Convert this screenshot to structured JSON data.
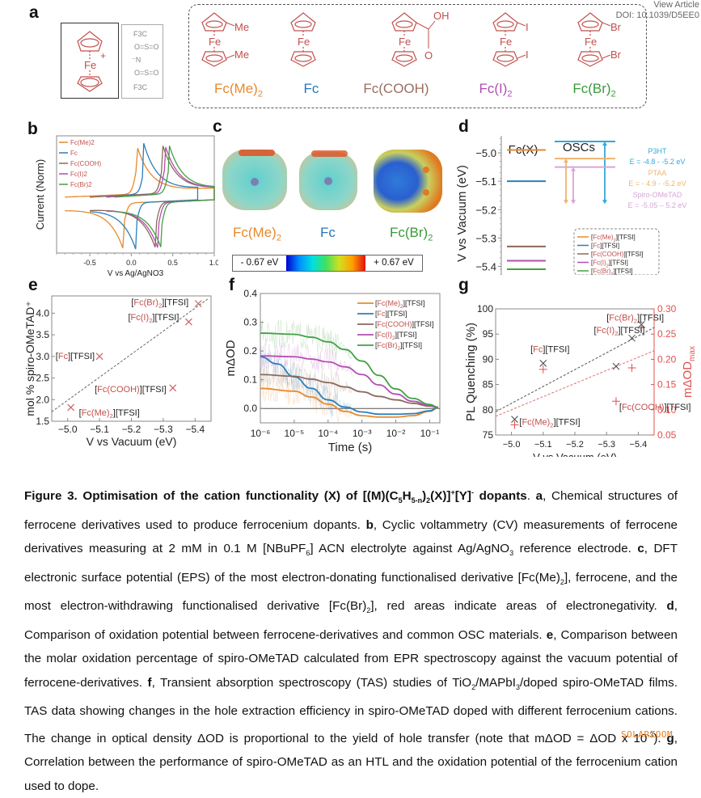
{
  "header": {
    "view_article": "View Article",
    "doi": "DOI: 10.1039/D5EE0"
  },
  "panel_a": {
    "label": "a",
    "cation_fe": "Fe",
    "cation_charge": "+",
    "tfsi_lines": [
      "F3C",
      "O=S=O",
      "⁻N",
      "O=S=O",
      "F3C"
    ],
    "molecules": [
      {
        "name": "Fc(Me)₂",
        "color": "#e8892b",
        "sub_top": "Me",
        "sub_bottom": "Me"
      },
      {
        "name": "Fc",
        "color": "#2878b8",
        "sub_top": "",
        "sub_bottom": ""
      },
      {
        "name": "Fc(COOH)",
        "color": "#9a6e60",
        "sub_top": "OH",
        "sub_bottom": "O"
      },
      {
        "name": "Fc(I)₂",
        "color": "#b050b0",
        "sub_top": "I",
        "sub_bottom": "I"
      },
      {
        "name": "Fc(Br)₂",
        "color": "#3a9a3a",
        "sub_top": "Br",
        "sub_bottom": "Br"
      }
    ],
    "fe_label": "Fe"
  },
  "colors": {
    "me2": "#e8892b",
    "fc": "#2b7fba",
    "cooh": "#8a6a5a",
    "i2": "#b24fb2",
    "br2": "#43a043",
    "struct": "#c0504d",
    "red_axis": "#e05050"
  },
  "chart_data": [
    {
      "id": "b",
      "type": "line",
      "title": "",
      "xlabel": "V vs Ag/AgNO3",
      "ylabel": "Current (Norm)",
      "xlim": [
        -0.9,
        1.0
      ],
      "ylim": [
        -1.1,
        1.1
      ],
      "xticks": [
        -0.5,
        0.0,
        0.5,
        1.0
      ],
      "xtick_labels": [
        "-0.5",
        "0.0",
        "0.5",
        "1.0"
      ],
      "legend": [
        "Fc(Me)2",
        "Fc",
        "Fc(COOH)",
        "Fc(I)2",
        "Fc(Br)2"
      ],
      "legend_position": "top-left",
      "series": [
        {
          "name": "Fc(Me)2",
          "start": -0.8,
          "end": 1.0,
          "E_ox": 0.06,
          "E_red": -0.09
        },
        {
          "name": "Fc",
          "start": -0.5,
          "end": 0.8,
          "E_ox": 0.15,
          "E_red": 0.06
        },
        {
          "name": "Fc(COOH)",
          "start": -0.5,
          "end": 1.0,
          "E_ox": 0.37,
          "E_red": 0.3
        },
        {
          "name": "Fc(I)2",
          "start": -0.3,
          "end": 1.0,
          "E_ox": 0.4,
          "E_red": 0.33
        },
        {
          "name": "Fc(Br)2",
          "start": -0.2,
          "end": 1.0,
          "E_ox": 0.45,
          "E_red": 0.37
        }
      ]
    },
    {
      "id": "d",
      "type": "bar",
      "title": "",
      "ylabel": "V vs Vacuum (eV)",
      "ylim": [
        -5.43,
        -4.94
      ],
      "yticks": [
        -5.0,
        -5.1,
        -5.2,
        -5.3,
        -5.4
      ],
      "ytick_labels": [
        "−5.0",
        "−5.1",
        "−5.2",
        "−5.3",
        "−5.4"
      ],
      "group_labels": [
        "Fc(X)",
        "OSCs"
      ],
      "fcx_levels": [
        {
          "name": "[Fc(Me)2][TFSI]",
          "value": -4.99
        },
        {
          "name": "[Fc][TFSI]",
          "value": -5.1
        },
        {
          "name": "[Fc(COOH)][TFSI]",
          "value": -5.33
        },
        {
          "name": "[Fc(I)2][TFSI]",
          "value": -5.38
        },
        {
          "name": "[Fc(Br)2][TFSI]",
          "value": -5.41
        }
      ],
      "osc_levels": [
        {
          "name": "P3HT",
          "top": -4.96,
          "bottom": -5.18,
          "range_text": "E = -4.8 - -5.2 eV",
          "color": "#33a8d8"
        },
        {
          "name": "PTAA",
          "top": -5.02,
          "bottom": -5.18,
          "range_text": "E = - 4.9 - -5.2 eV",
          "color": "#f3b36a"
        },
        {
          "name": "Spiro-OMeTAD",
          "top": -5.05,
          "bottom": -5.18,
          "range_text": "E = -5.05 – 5.2 eV",
          "color": "#d7a5d9"
        }
      ],
      "legend_entries": [
        {
          "pre": "[",
          "red": "Fc(Me)",
          "sub": "2",
          "post": "][TFSI]"
        },
        {
          "pre": "[",
          "red": "Fc",
          "sub": "",
          "post": "][TFSI]"
        },
        {
          "pre": "[",
          "red": "Fc(COOH)",
          "sub": "",
          "post": "][TFSI]"
        },
        {
          "pre": "[",
          "red": "Fc(I)",
          "sub": "2",
          "post": "][TFSI]"
        },
        {
          "pre": "[",
          "red": "Fc(Br)",
          "sub": "2",
          "post": "][TFSI]"
        }
      ],
      "legend_position": "bottom-right"
    },
    {
      "id": "e",
      "type": "scatter",
      "title": "",
      "xlabel": "V vs Vacuum (eV)",
      "ylabel": "mol % spiro-OMeTAD⁺",
      "xlim": [
        -4.95,
        -5.45
      ],
      "ylim": [
        1.5,
        4.4
      ],
      "xticks": [
        -5.0,
        -5.1,
        -5.2,
        -5.3,
        -5.4
      ],
      "xtick_labels": [
        "−5.0",
        "−5.1",
        "−5.2",
        "−5.3",
        "−5.4"
      ],
      "yticks": [
        1.5,
        2.0,
        2.5,
        3.0,
        3.5,
        4.0
      ],
      "ytick_labels": [
        "1.5",
        "2.0",
        "2.5",
        "3.0",
        "3.5",
        "4.0"
      ],
      "points": [
        {
          "name": "[Fc(Me)2][TFSI]",
          "x": -5.01,
          "y": 1.82,
          "label_red": "Fc(Me)",
          "sub": "2"
        },
        {
          "name": "[Fc][TFSI]",
          "x": -5.1,
          "y": 3.0,
          "label_red": "Fc",
          "sub": ""
        },
        {
          "name": "[Fc(COOH)][TFSI]",
          "x": -5.33,
          "y": 2.27,
          "label_red": "Fc(COOH)",
          "sub": ""
        },
        {
          "name": "[Fc(I)2][TFSI]",
          "x": -5.38,
          "y": 3.8,
          "label_red": "Fc(I)",
          "sub": "2"
        },
        {
          "name": "[Fc(Br)2][TFSI]",
          "x": -5.41,
          "y": 4.22,
          "label_red": "Fc(Br)",
          "sub": "2"
        }
      ],
      "fit_line": {
        "x": [
          -4.95,
          -5.44
        ],
        "y": [
          1.72,
          4.33
        ]
      }
    },
    {
      "id": "f",
      "type": "line",
      "title": "",
      "xlabel": "Time (s)",
      "ylabel": "mΔOD",
      "xscale": "log",
      "xlim_log10": [
        -6,
        -0.7
      ],
      "ylim": [
        -0.05,
        0.4
      ],
      "xticks_log10": [
        -6,
        -5,
        -4,
        -3,
        -2,
        -1
      ],
      "xtick_labels": [
        "10⁻⁶",
        "10⁻⁵",
        "10⁻⁴",
        "10⁻³",
        "10⁻²",
        "10⁻¹"
      ],
      "yticks": [
        0.0,
        0.1,
        0.2,
        0.3,
        0.4
      ],
      "ytick_labels": [
        "0.0",
        "0.1",
        "0.2",
        "0.3",
        "0.4"
      ],
      "legend_position": "top-right",
      "series": [
        {
          "name": "[Fc(Me)2][TFSI]",
          "label_red": "Fc(Me)",
          "sub": "2",
          "points_log10x": [
            [
              -6,
              0.07
            ],
            [
              -5,
              0.06
            ],
            [
              -4.5,
              0.04
            ],
            [
              -4,
              0.015
            ],
            [
              -3.5,
              -0.01
            ],
            [
              -3,
              -0.025
            ],
            [
              -2.5,
              -0.03
            ],
            [
              -2,
              -0.03
            ],
            [
              -1.5,
              -0.025
            ],
            [
              -1,
              -0.01
            ],
            [
              -0.75,
              0.002
            ]
          ]
        },
        {
          "name": "[Fc][TFSI]",
          "label_red": "Fc",
          "sub": "",
          "points_log10x": [
            [
              -6,
              0.18
            ],
            [
              -5.5,
              0.155
            ],
            [
              -5,
              0.11
            ],
            [
              -4.5,
              0.07
            ],
            [
              -4,
              0.03
            ],
            [
              -3.5,
              0.005
            ],
            [
              -3,
              -0.012
            ],
            [
              -2.5,
              -0.02
            ],
            [
              -2,
              -0.02
            ],
            [
              -1.5,
              -0.018
            ],
            [
              -1,
              -0.008
            ],
            [
              -0.75,
              0.004
            ]
          ]
        },
        {
          "name": "[Fc(COOH)][TFSI]",
          "label_red": "Fc(COOH)",
          "sub": "",
          "points_log10x": [
            [
              -6,
              0.118
            ],
            [
              -5,
              0.112
            ],
            [
              -4.5,
              0.102
            ],
            [
              -4,
              0.09
            ],
            [
              -3.5,
              0.075
            ],
            [
              -3,
              0.058
            ],
            [
              -2.5,
              0.042
            ],
            [
              -2,
              0.03
            ],
            [
              -1.5,
              0.018
            ],
            [
              -1,
              0.008
            ],
            [
              -0.75,
              0.004
            ]
          ]
        },
        {
          "name": "[Fc(I)2][TFSI]",
          "label_red": "Fc(I)",
          "sub": "2",
          "points_log10x": [
            [
              -6,
              0.183
            ],
            [
              -5,
              0.18
            ],
            [
              -4.5,
              0.172
            ],
            [
              -4,
              0.162
            ],
            [
              -3.5,
              0.145
            ],
            [
              -3,
              0.118
            ],
            [
              -2.5,
              0.082
            ],
            [
              -2,
              0.05
            ],
            [
              -1.5,
              0.025
            ],
            [
              -1,
              0.01
            ],
            [
              -0.75,
              0.004
            ]
          ]
        },
        {
          "name": "[Fc(Br)2][TFSI]",
          "label_red": "Fc(Br)",
          "sub": "2",
          "points_log10x": [
            [
              -6,
              0.262
            ],
            [
              -5,
              0.258
            ],
            [
              -4.5,
              0.248
            ],
            [
              -4,
              0.232
            ],
            [
              -3.5,
              0.205
            ],
            [
              -3,
              0.165
            ],
            [
              -2.5,
              0.115
            ],
            [
              -2,
              0.068
            ],
            [
              -1.5,
              0.035
            ],
            [
              -1,
              0.014
            ],
            [
              -0.75,
              0.004
            ]
          ]
        }
      ]
    },
    {
      "id": "g",
      "type": "scatter",
      "title": "",
      "xlabel": "V vs Vacuum (eV)",
      "ylabel": "PL Quenching (%)",
      "ylabel_right": "mΔOD",
      "ylabel_right_sub": "max",
      "xlim": [
        -4.95,
        -5.45
      ],
      "ylim": [
        75,
        100
      ],
      "ylim_right": [
        0.05,
        0.3
      ],
      "xticks": [
        -5.0,
        -5.1,
        -5.2,
        -5.3,
        -5.4
      ],
      "xtick_labels": [
        "−5.0",
        "−5.1",
        "−5.2",
        "−5.3",
        "−5.4"
      ],
      "yticks": [
        75,
        80,
        85,
        90,
        95,
        100
      ],
      "ytick_labels": [
        "75",
        "80",
        "85",
        "90",
        "95",
        "100"
      ],
      "yticks_right": [
        0.05,
        0.1,
        0.15,
        0.2,
        0.25,
        0.3
      ],
      "ytick_labels_right": [
        "0.05",
        "0.10",
        "0.15",
        "0.20",
        "0.25",
        "0.30"
      ],
      "pl_points": [
        {
          "x": -5.01,
          "y": 78.1
        },
        {
          "x": -5.1,
          "y": 89.2
        },
        {
          "x": -5.33,
          "y": 88.6
        },
        {
          "x": -5.38,
          "y": 94.2
        },
        {
          "x": -5.41,
          "y": 96.9
        }
      ],
      "od_points": [
        {
          "x": -5.01,
          "y": 0.07
        },
        {
          "x": -5.1,
          "y": 0.18
        },
        {
          "x": -5.33,
          "y": 0.117
        },
        {
          "x": -5.38,
          "y": 0.183
        },
        {
          "x": -5.41,
          "y": 0.263
        }
      ],
      "pl_fit": {
        "x": [
          -4.95,
          -5.45
        ],
        "y": [
          79.6,
          96.3
        ]
      },
      "od_fit": {
        "x": [
          -4.95,
          -5.45
        ],
        "y": [
          0.087,
          0.217
        ]
      },
      "labels": [
        {
          "red": "Fc(Me)",
          "sub": "2",
          "x": -5.025,
          "y": 77
        },
        {
          "red": "Fc",
          "sub": "",
          "x": -5.06,
          "y": 91.4
        },
        {
          "red": "Fc(COOH)",
          "sub": "",
          "x": -5.34,
          "y": 80
        },
        {
          "red": "Fc(I)",
          "sub": "2",
          "x": -5.26,
          "y": 95.2
        },
        {
          "red": "Fc(Br)",
          "sub": "2",
          "x": -5.3,
          "y": 97.7
        }
      ]
    }
  ],
  "panel_c": {
    "label": "c",
    "molecules": [
      {
        "name_main": "Fc(Me)",
        "name_sub": "2",
        "color": "#e8892b"
      },
      {
        "name_main": "Fc",
        "name_sub": "",
        "color": "#2878b8"
      },
      {
        "name_main": "Fc(Br)",
        "name_sub": "2",
        "color": "#3a9a3a"
      }
    ],
    "scale_min": "- 0.67 eV",
    "scale_max": "+ 0.67 eV"
  },
  "panel_labels": {
    "b": "b",
    "d": "d",
    "e": "e",
    "f": "f",
    "g": "g"
  },
  "tfsi_suffix": "[TFSI]",
  "caption": {
    "title": "Figure 3. Optimisation of the cation functionality (X) of [(M)(C",
    "title_sub1": "5",
    "title_mid1": "H",
    "title_sub2": "5-n",
    "title_mid2": ")",
    "title_sub3": "2",
    "title_mid3": "(X)]",
    "title_sup1": "+",
    "title_mid4": "[Y]",
    "title_sup2": "-",
    "title_end": " dopants",
    "a": "a",
    "a_text": ", Chemical structures of ferrocene derivatives used to produce ferrocenium dopants. ",
    "b": "b",
    "b_text1": ", Cyclic voltammetry (CV) measurements of ferrocene derivatives measuring at 2 mM in 0.1 M [NBuPF",
    "b_sub": "6",
    "b_text2": "] ACN electrolyte against Ag/AgNO",
    "b_sub2": "3",
    "b_text3": " reference electrode. ",
    "c": "c",
    "c_text1": ", DFT electronic surface potential (EPS) of the most electron-donating functionalised derivative [Fc(Me)",
    "c_sub1": "2",
    "c_text2": "], ferrocene, and the most electron-withdrawing functionalised derivative [Fc(Br)",
    "c_sub2": "2",
    "c_text3": "], red areas indicate areas of electronegativity. ",
    "d": "d",
    "d_text": ", Comparison of oxidation potential between ferrocene-derivatives and common OSC materials. ",
    "e": "e",
    "e_text": ", Comparison between the molar oxidation percentage of spiro-OMeTAD calculated from EPR spectroscopy against the vacuum potential of ferrocene-derivatives. ",
    "f": "f",
    "f_text1": ", Transient absorption spectroscopy (TAS) studies of TiO",
    "f_sub1": "2",
    "f_text2": "/MAPbI",
    "f_sub2": "3",
    "f_text3": "/doped spiro-OMeTAD films. TAS data showing changes in the hole extraction efficiency in spiro-OMeTAD doped with different ferrocenium cations. The change in optical density ΔOD is proportional to the yield of hole transfer (note that mΔOD = ΔOD x 10",
    "f_sup": "-3",
    "f_text4": "). ",
    "g": "g",
    "g_text": ", Correlation between the performance of spiro-OMeTAD as an HTL and the oxidation potential of the ferrocenium cation used to dope."
  },
  "watermark": "SOLARZOOM"
}
